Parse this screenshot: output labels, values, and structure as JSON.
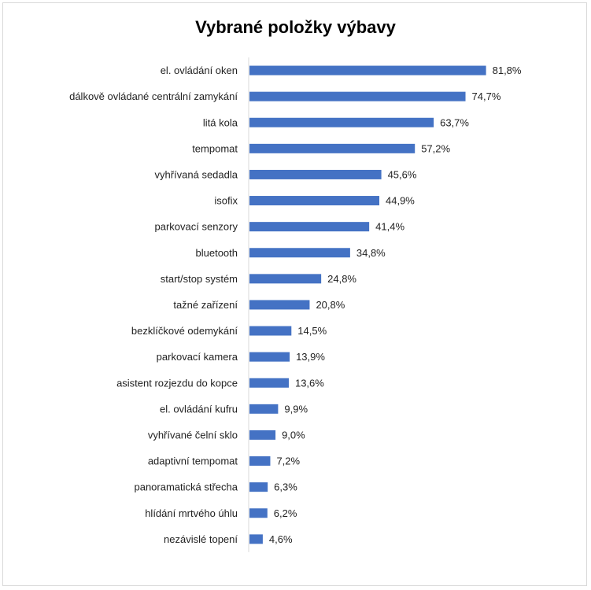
{
  "chart_data": {
    "type": "bar",
    "orientation": "horizontal",
    "title": "Vybrané položky výbavy",
    "bar_color": "#4472C4",
    "categories": [
      "el. ovládání oken",
      "dálkově ovládané centrální zamykání",
      "litá kola",
      "tempomat",
      "vyhřívaná sedadla",
      "isofix",
      "parkovací senzory",
      "bluetooth",
      "start/stop systém",
      "tažné zařízení",
      "bezklíčkové odemykání",
      "parkovací kamera",
      "asistent rozjezdu do kopce",
      "el. ovládání kufru",
      "vyhřívané čelní sklo",
      "adaptivní tempomat",
      "panoramatická střecha",
      "hlídání mrtvého úhlu",
      "nezávislé topení"
    ],
    "values": [
      81.8,
      74.7,
      63.7,
      57.2,
      45.6,
      44.9,
      41.4,
      34.8,
      24.8,
      20.8,
      14.5,
      13.9,
      13.6,
      9.9,
      9.0,
      7.2,
      6.3,
      6.2,
      4.6
    ],
    "value_labels": [
      "81,8%",
      "74,7%",
      "63,7%",
      "57,2%",
      "45,6%",
      "44,9%",
      "41,4%",
      "34,8%",
      "24,8%",
      "20,8%",
      "14,5%",
      "13,9%",
      "13,6%",
      "9,9%",
      "9,0%",
      "7,2%",
      "6,3%",
      "6,2%",
      "4,6%"
    ],
    "xlim": [
      0,
      100
    ],
    "grid": false,
    "legend": "none"
  }
}
